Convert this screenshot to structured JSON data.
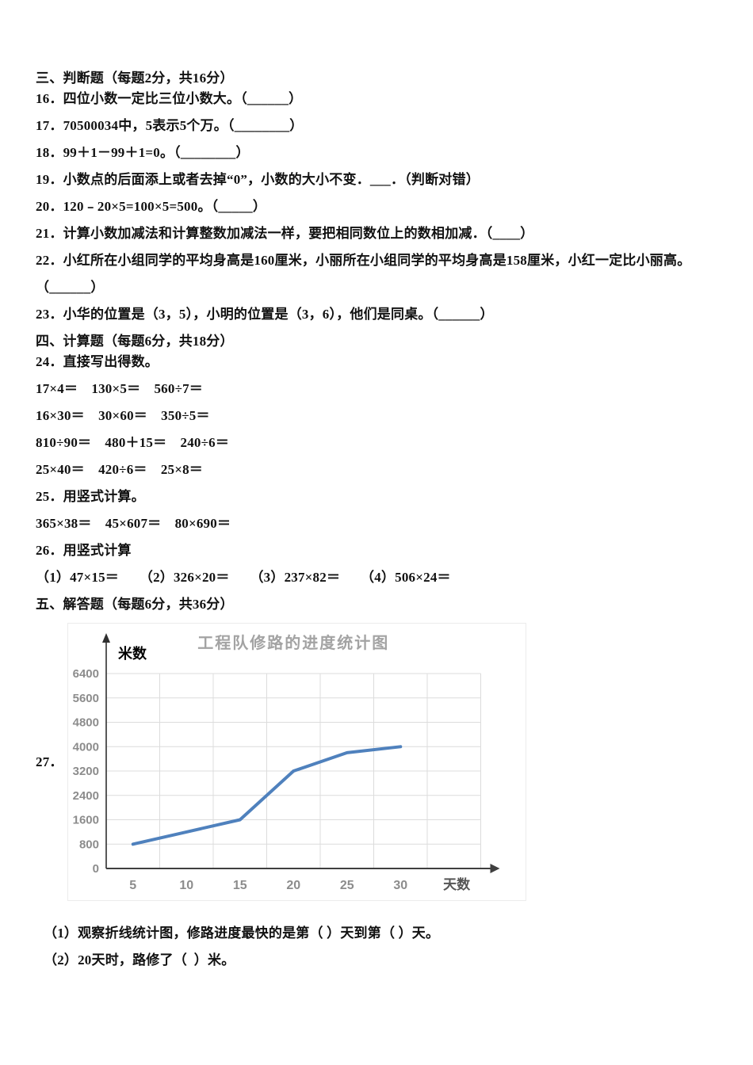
{
  "sections": {
    "judge": {
      "header": "三、判断题（每题2分，共16分）",
      "q16": "16．四位小数一定比三位小数大。（______）",
      "q17": "17．70500034中，5表示5个万。（________）",
      "q18": "18．99＋1－99＋1=0。（________）",
      "q19": "19．小数点的后面添上或者去掉“0”，小数的大小不变．___．（判断对错）",
      "q20": "20．120﹣20×5=100×5=500。（_____）",
      "q21": "21．计算小数加减法和计算整数加减法一样，要把相同数位上的数相加减．（____）",
      "q22": "22．小红所在小组同学的平均身高是160厘米，小丽所在小组同学的平均身高是158厘米，小红一定比小丽高。（______）",
      "q23": "23．小华的位置是（3，5），小明的位置是（3，6），他们是同桌。（______）"
    },
    "calc": {
      "header": "四、计算题（每题6分，共18分）",
      "q24_title": "24．直接写出得数。",
      "q24_rows": [
        "17×4＝　130×5＝　560÷7＝",
        "16×30＝　30×60＝　350÷5＝",
        "810÷90＝　480＋15＝　240÷6＝",
        "25×40＝　420÷6＝　25×8＝"
      ],
      "q25_title": "25．用竖式计算。",
      "q25_row": "365×38＝　45×607＝　80×690＝",
      "q26_title": "26．用竖式计算",
      "q26_row": "（1）47×15＝　　（2）326×20＝　　（3）237×82＝　　（4）506×24＝"
    },
    "solve": {
      "header": "五、解答题（每题6分，共36分）",
      "q27_label": "27．",
      "q27_sub1": "（1）观察折线统计图，修路进度最快的是第（ ）天到第（ ）天。",
      "q27_sub2": "（2）20天时，路修了（  ）米。"
    }
  },
  "chart_data": {
    "type": "line",
    "title": "工程队修路的进度统计图",
    "xlabel": "天数",
    "ylabel": "米数",
    "categories": [
      5,
      10,
      15,
      20,
      25,
      30
    ],
    "values": [
      800,
      1200,
      1600,
      3200,
      3800,
      4000
    ],
    "ylim": [
      0,
      6400
    ],
    "ytick_step": 800,
    "grid": true,
    "legend": "none",
    "line_color": "#4f81bd",
    "grid_color": "#dcdcdc",
    "tick_label_color": "#8c8c8c",
    "title_color": "#a3a3a3"
  }
}
